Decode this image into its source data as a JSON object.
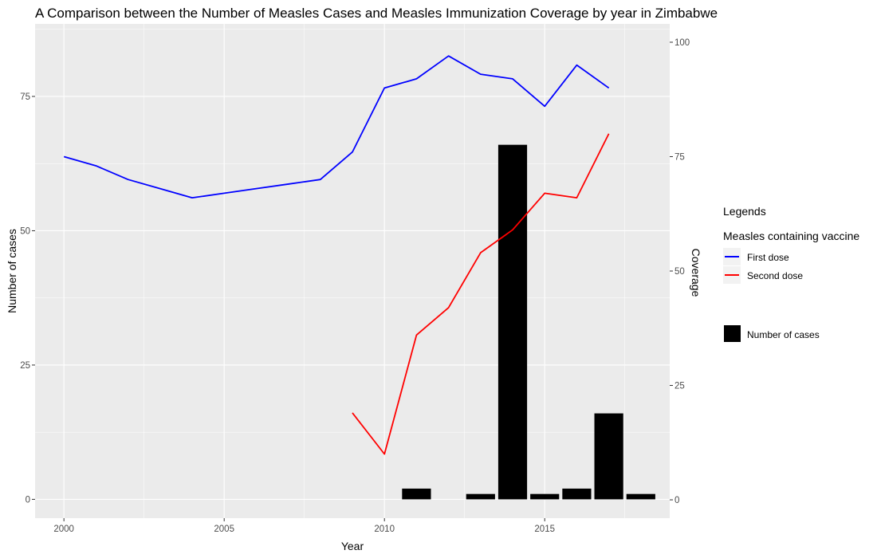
{
  "chart_data": {
    "type": "bar+line",
    "title": "A Comparison between the Number of Measles Cases and Measles Immunization Coverage by year in Zimbabwe",
    "xlabel": "Year",
    "ylabel_left": "Number of cases",
    "ylabel_right": "Coverage",
    "xlim": [
      1999.1,
      2018.9
    ],
    "ylim_left": [
      -3.5,
      88.5
    ],
    "ylim_right": [
      -4,
      104
    ],
    "x_ticks": [
      2000,
      2005,
      2010,
      2015
    ],
    "y_left_ticks": [
      0,
      25,
      50,
      75
    ],
    "y_right_ticks": [
      0,
      25,
      50,
      75,
      100
    ],
    "grid": true,
    "legend_position": "right",
    "legend": {
      "heading": "Legends",
      "group_title": "Measles containing vaccine",
      "line_entries": [
        {
          "label": "First dose",
          "color": "#0000ff"
        },
        {
          "label": "Second dose",
          "color": "#ff0000"
        }
      ],
      "bar_entry": {
        "label": "Number of cases",
        "color": "#000000"
      }
    },
    "bars": {
      "name": "Number of cases",
      "color": "#000000",
      "x": [
        2011,
        2013,
        2014,
        2015,
        2016,
        2017,
        2018
      ],
      "values": [
        2,
        1,
        66,
        1,
        2,
        16,
        1
      ]
    },
    "series": [
      {
        "name": "First dose",
        "axis": "right",
        "color": "#0000ff",
        "x": [
          2000,
          2001,
          2002,
          2003,
          2004,
          2005,
          2006,
          2007,
          2008,
          2009,
          2010,
          2011,
          2012,
          2013,
          2014,
          2015,
          2016,
          2017
        ],
        "values": [
          75,
          73,
          70,
          68,
          66,
          67,
          68,
          69,
          70,
          76,
          90,
          92,
          97,
          93,
          92,
          86,
          95,
          90
        ]
      },
      {
        "name": "Second dose",
        "axis": "right",
        "color": "#ff0000",
        "x": [
          2009,
          2010,
          2011,
          2012,
          2013,
          2014,
          2015,
          2016,
          2017
        ],
        "values": [
          19,
          10,
          36,
          42,
          54,
          59,
          67,
          66,
          80
        ]
      }
    ]
  }
}
